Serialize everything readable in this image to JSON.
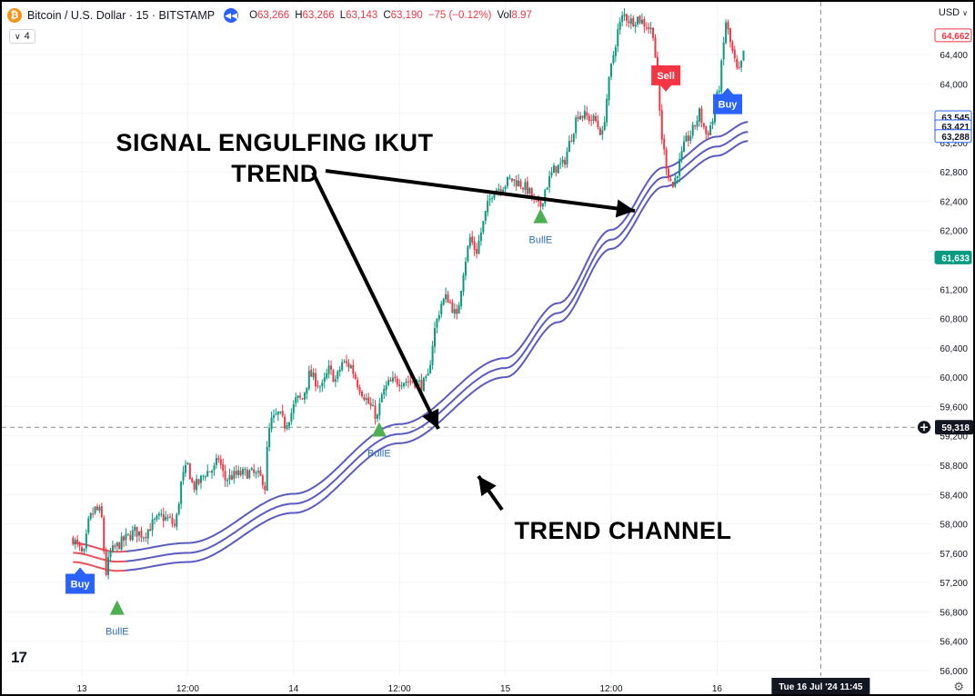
{
  "header": {
    "symbol": "Bitcoin / U.S. Dollar · 15 · BITSTAMP",
    "ohlc": [
      {
        "k": "O",
        "v": "63,266"
      },
      {
        "k": "H",
        "v": "63,266"
      },
      {
        "k": "L",
        "v": "63,143"
      },
      {
        "k": "C",
        "v": "63,190"
      },
      {
        "k": "",
        "v": "−75 (−0.12%)"
      },
      {
        "k": "Vol",
        "v": "8.97"
      }
    ],
    "indicator_count": "4",
    "currency": "USD"
  },
  "colors": {
    "up": "#089981",
    "down": "#f23645",
    "channel": "#5b5bbf",
    "channel_red": "#e8505b",
    "bull_marker": "#4caf50",
    "buy": "#2962ff",
    "sell": "#f23645",
    "grid": "#f0f3fa"
  },
  "annotations": {
    "engulfing_line1": "SIGNAL ENGULFING IKUT",
    "engulfing_line2": "TREND",
    "channel": "TREND CHANNEL"
  },
  "chart_data": {
    "type": "candlestick",
    "title": "Bitcoin / U.S. Dollar · 15 · BITSTAMP",
    "ylim": [
      55900,
      65500
    ],
    "y_ticks": [
      56000,
      56400,
      56800,
      57200,
      57600,
      58000,
      58400,
      58800,
      59200,
      59600,
      60000,
      60400,
      60800,
      61200,
      61600,
      62000,
      62400,
      62800,
      63200,
      63600,
      64000,
      64400
    ],
    "y_tick_labels": [
      "56,000",
      "56,400",
      "56,800",
      "57,200",
      "57,600",
      "58,000",
      "58,400",
      "58,800",
      "59,200",
      "59,600",
      "60,000",
      "60,400",
      "60,800",
      "61,200",
      "61,600",
      "62,000",
      "62,400",
      "62,800",
      "63,200",
      "63,600",
      "64,000",
      "64,400"
    ],
    "x_ticks": [
      "13",
      "12:00",
      "14",
      "12:00",
      "15",
      "12:00",
      "16"
    ],
    "x_tick_hours": [
      12,
      24,
      36,
      48,
      60,
      72,
      84
    ],
    "xlim_hours": [
      11,
      101
    ],
    "crosshair": {
      "time_label": "Tue 16 Jul '24   11:45",
      "hour": 95.75,
      "price_label": "59,318",
      "price": 59318
    },
    "price_labels": [
      {
        "text": "64,662",
        "price": 64662,
        "style": "red-outline"
      },
      {
        "text": "63,545",
        "price": 63545,
        "style": "blue-outline"
      },
      {
        "text": "63,421",
        "price": 63421,
        "style": "blue-outline"
      },
      {
        "text": "63,288",
        "price": 63288,
        "style": "blue-outline"
      },
      {
        "text": "61,633",
        "price": 61633,
        "style": "green-filled"
      }
    ],
    "path_points": [
      [
        11,
        57.8
      ],
      [
        12.2,
        57.55
      ],
      [
        12.8,
        58.05
      ],
      [
        13.5,
        58.2
      ],
      [
        14.2,
        58.15
      ],
      [
        14.7,
        57.3
      ],
      [
        15.2,
        57.6
      ],
      [
        16,
        57.7
      ],
      [
        17,
        57.8
      ],
      [
        18,
        57.9
      ],
      [
        19,
        57.85
      ],
      [
        20,
        58.0
      ],
      [
        21,
        58.1
      ],
      [
        22,
        58.05
      ],
      [
        22.6,
        57.95
      ],
      [
        23.3,
        58.6
      ],
      [
        24,
        58.8
      ],
      [
        24.6,
        58.5
      ],
      [
        25.2,
        58.55
      ],
      [
        26,
        58.7
      ],
      [
        27,
        58.75
      ],
      [
        27.5,
        58.9
      ],
      [
        28.2,
        58.6
      ],
      [
        29,
        58.65
      ],
      [
        30,
        58.68
      ],
      [
        31,
        58.7
      ],
      [
        32,
        58.65
      ],
      [
        32.5,
        58.6
      ],
      [
        32.7,
        58.4
      ],
      [
        33.1,
        59.2
      ],
      [
        33.5,
        59.4
      ],
      [
        34.3,
        59.5
      ],
      [
        35,
        59.35
      ],
      [
        35.7,
        59.5
      ],
      [
        36.3,
        59.7
      ],
      [
        37,
        59.7
      ],
      [
        37.8,
        60.05
      ],
      [
        38.5,
        59.95
      ],
      [
        39.2,
        59.85
      ],
      [
        40,
        60.1
      ],
      [
        40.8,
        59.95
      ],
      [
        41.5,
        60.2
      ],
      [
        42.5,
        60.15
      ],
      [
        43.3,
        59.9
      ],
      [
        44,
        59.75
      ],
      [
        44.7,
        59.6
      ],
      [
        45.5,
        59.45
      ],
      [
        46,
        59.75
      ],
      [
        46.7,
        59.9
      ],
      [
        47.5,
        59.95
      ],
      [
        48.5,
        59.95
      ],
      [
        49.5,
        59.95
      ],
      [
        50.5,
        59.9
      ],
      [
        51.2,
        59.95
      ],
      [
        51.9,
        60.6
      ],
      [
        52.7,
        61.0
      ],
      [
        53.4,
        61.1
      ],
      [
        54,
        60.95
      ],
      [
        54.5,
        60.8
      ],
      [
        55.3,
        61.5
      ],
      [
        56,
        61.9
      ],
      [
        56.7,
        61.7
      ],
      [
        57.3,
        62.0
      ],
      [
        57.9,
        62.3
      ],
      [
        58.6,
        62.55
      ],
      [
        59.6,
        62.6
      ],
      [
        60.6,
        62.7
      ],
      [
        61.6,
        62.65
      ],
      [
        62.6,
        62.55
      ],
      [
        63.2,
        62.4
      ],
      [
        63.9,
        62.3
      ],
      [
        64.6,
        62.6
      ],
      [
        65.6,
        62.85
      ],
      [
        66.6,
        62.9
      ],
      [
        67.4,
        63.25
      ],
      [
        68.2,
        63.6
      ],
      [
        69.2,
        63.55
      ],
      [
        70.2,
        63.5
      ],
      [
        71,
        63.3
      ],
      [
        71.6,
        63.9
      ],
      [
        72.1,
        64.3
      ],
      [
        72.7,
        64.7
      ],
      [
        73.4,
        64.95
      ],
      [
        74.2,
        64.85
      ],
      [
        75,
        64.9
      ],
      [
        76,
        64.8
      ],
      [
        76.8,
        64.7
      ],
      [
        77.3,
        63.9
      ],
      [
        77.8,
        63.2
      ],
      [
        78.4,
        62.8
      ],
      [
        79,
        62.6
      ],
      [
        79.7,
        62.9
      ],
      [
        80.4,
        63.2
      ],
      [
        81.2,
        63.35
      ],
      [
        82,
        63.6
      ],
      [
        82.8,
        63.3
      ],
      [
        83.5,
        63.5
      ],
      [
        84.3,
        64.0
      ],
      [
        85,
        64.85
      ],
      [
        85.6,
        64.5
      ],
      [
        86.4,
        64.1
      ],
      [
        87.2,
        64.5
      ]
    ],
    "channel": {
      "lower_points": [
        [
          11,
          57.48
        ],
        [
          16,
          57.36
        ],
        [
          24,
          57.48
        ],
        [
          36,
          58.15
        ],
        [
          48,
          59.1
        ],
        [
          60,
          60.0
        ],
        [
          66,
          60.75
        ],
        [
          72,
          61.75
        ],
        [
          78,
          62.6
        ],
        [
          84,
          63.02
        ],
        [
          87.5,
          63.22
        ]
      ],
      "offsets": [
        0,
        0.125,
        0.26
      ],
      "red_until_hour": 17
    },
    "markers": [
      {
        "type": "BullE",
        "label": "BullE",
        "hour": 16.0,
        "price": 56860
      },
      {
        "type": "BullE",
        "label": "BullE",
        "hour": 45.7,
        "price": 59290
      },
      {
        "type": "BullE",
        "label": "BullE",
        "hour": 64.0,
        "price": 62200
      },
      {
        "type": "Buy",
        "label": "Buy",
        "hour": 11.8,
        "price": 57320
      },
      {
        "type": "Sell",
        "label": "Sell",
        "hour": 78.2,
        "price": 63980
      },
      {
        "type": "Buy",
        "label": "Buy",
        "hour": 85.2,
        "price": 63860
      }
    ]
  }
}
